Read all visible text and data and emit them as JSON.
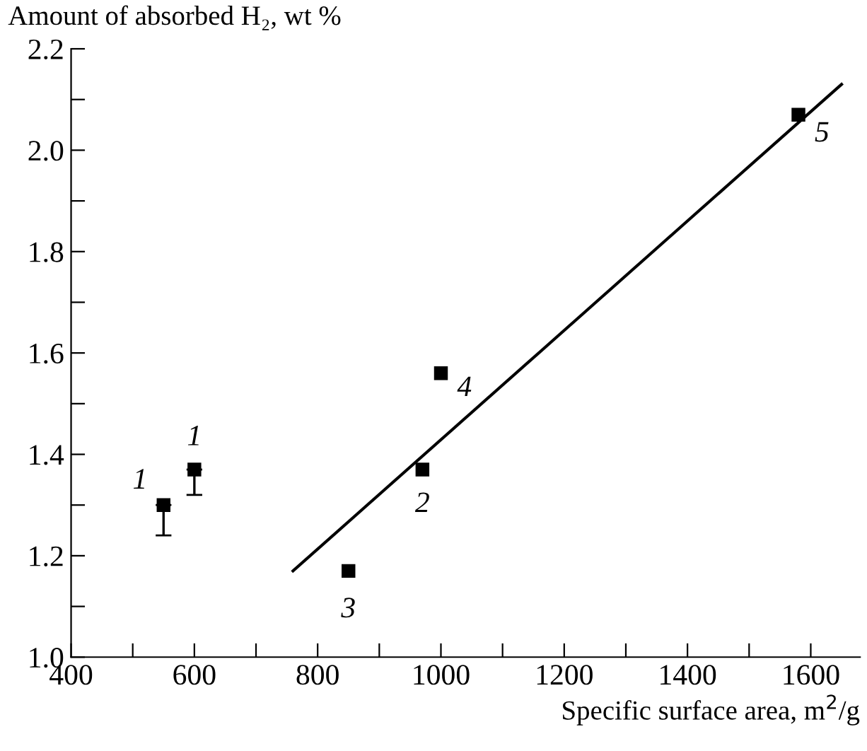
{
  "chart_data": {
    "type": "scatter",
    "xlabel": "Specific surface area, m$^{2}$/g",
    "ylabel": "Amount of absorbed H₂, wt %",
    "series": [
      {
        "color": "#000000",
        "marker": "square",
        "x": [
          550,
          600,
          850,
          970,
          1000,
          1580
        ],
        "values": [
          1.3,
          1.37,
          1.17,
          1.37,
          1.56,
          2.07
        ],
        "errors": [
          [
            1.24,
            1.3
          ],
          [
            1.32,
            1.37
          ],
          null,
          null,
          null,
          null
        ]
      },
      {
        "type": "line",
        "color": "#000000",
        "x": [
          760,
          1650
        ],
        "values": [
          1.17,
          2.13
        ]
      }
    ],
    "annotations": [
      {
        "text": "1",
        "x": 550,
        "y": 1.3
      },
      {
        "text": "1",
        "x": 600,
        "y": 1.37
      },
      {
        "text": "3",
        "x": 850,
        "y": 1.17
      },
      {
        "text": "2",
        "x": 970,
        "y": 1.37
      },
      {
        "text": "4",
        "x": 1000,
        "y": 1.56
      },
      {
        "text": "5",
        "x": 1580,
        "y": 2.07
      }
    ],
    "xlim": [
      400,
      1680
    ],
    "ylim": [
      1.0,
      2.2
    ],
    "xticks": [
      400,
      {
        "value": 500,
        "label": null
      },
      600,
      {
        "value": 700,
        "label": null
      },
      800,
      {
        "value": 900,
        "label": null
      },
      1000,
      {
        "value": 1100,
        "label": null
      },
      1200,
      {
        "value": 1300,
        "label": null
      },
      1400,
      {
        "value": 1500,
        "label": null
      },
      1600
    ],
    "yticks": [
      {
        "value": 1.0,
        "label": "1.0"
      },
      {
        "value": 1.1,
        "label": null
      },
      {
        "value": 1.2,
        "label": "1.2"
      },
      {
        "value": 1.3,
        "label": null
      },
      {
        "value": 1.4,
        "label": "1.4"
      },
      {
        "value": 1.5,
        "label": null
      },
      {
        "value": 1.6,
        "label": "1.6"
      },
      {
        "value": 1.7,
        "label": null
      },
      {
        "value": 1.8,
        "label": "1.8"
      },
      {
        "value": 1.9,
        "label": null
      },
      {
        "value": 2.0,
        "label": "2.0"
      },
      {
        "value": 2.1,
        "label": null
      },
      {
        "value": 2.2,
        "label": "2.2"
      }
    ],
    "grid": false,
    "legend": false
  }
}
